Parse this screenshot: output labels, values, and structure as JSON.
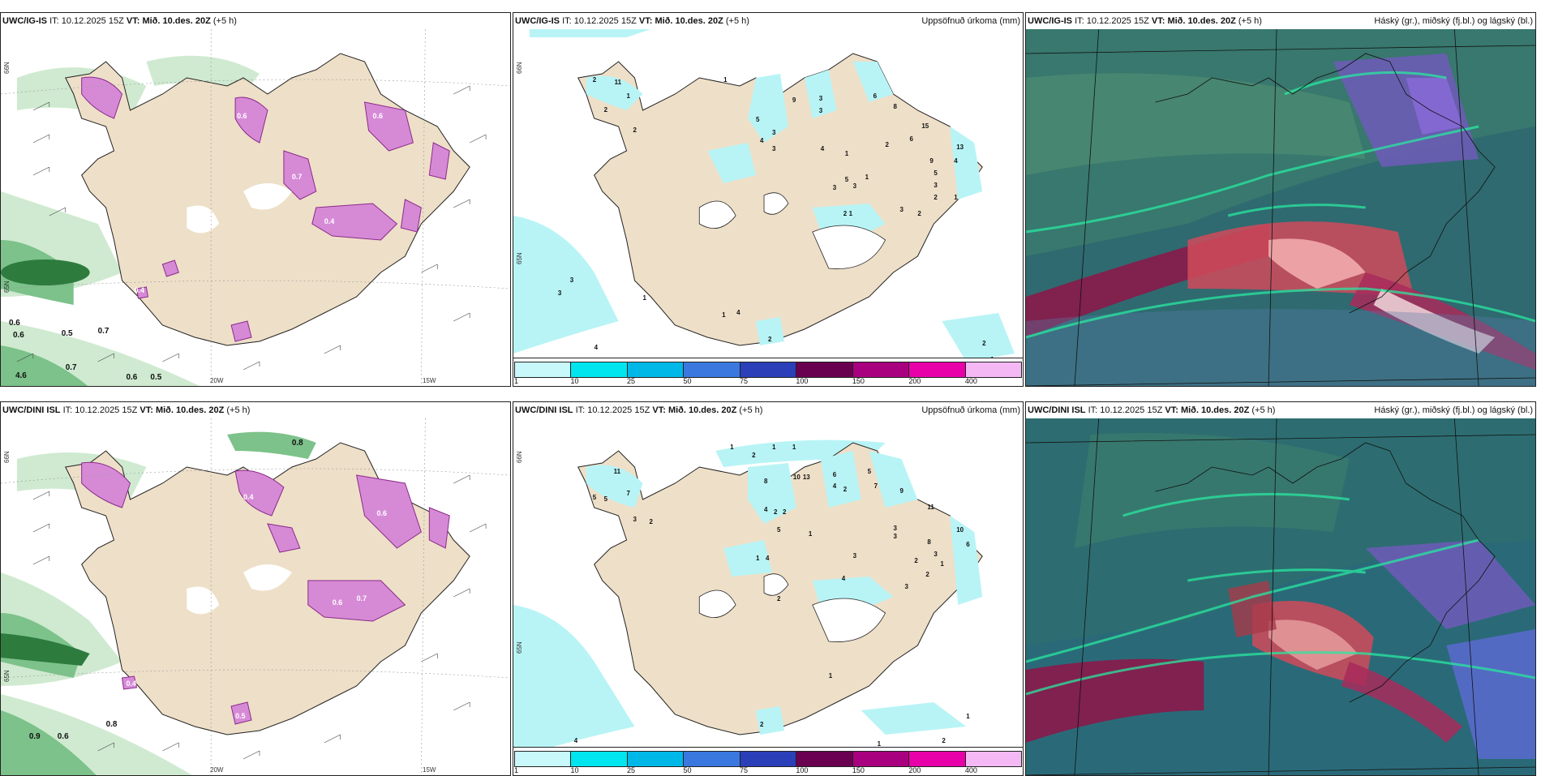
{
  "rows": [
    {
      "model": "UWC/IG-IS",
      "it_label": "IT:",
      "it_value": "10.12.2025 15Z",
      "vt_label": "VT:",
      "vt_value": "Mið. 10.des. 20Z",
      "lead": "(+5 h)"
    },
    {
      "model": "UWC/DINI ISL",
      "it_label": "IT:",
      "it_value": "10.12.2025 15Z",
      "vt_label": "VT:",
      "vt_value": "Mið. 10.des. 20Z",
      "lead": "(+5 h)"
    }
  ],
  "precip_title": "Uppsöfnuð úrkoma (mm)",
  "cloud_title": "Háský (gr.), miðský (fj.bl.) og lágský (bl.)",
  "axis": {
    "lon_labels": [
      "20W",
      "15W"
    ],
    "lat_labels": [
      "66N",
      "65N"
    ]
  },
  "colorbar": {
    "labels": [
      "1",
      "10",
      "25",
      "50",
      "75",
      "100",
      "150",
      "200",
      "400"
    ],
    "colors": [
      "#c8f8fa",
      "#00e5ee",
      "#00b8e8",
      "#3a78e0",
      "#2a3fb8",
      "#6a0050",
      "#a8007e",
      "#e800a8",
      "#f4b8f4"
    ]
  },
  "precip_values_top": [
    "1",
    "2",
    "11",
    "2",
    "2",
    "1",
    "5",
    "4",
    "3",
    "3",
    "9",
    "3",
    "3",
    "6",
    "8",
    "15",
    "13",
    "2",
    "6",
    "9",
    "4",
    "1",
    "1",
    "3",
    "4",
    "3",
    "2",
    "1",
    "3",
    "2",
    "3",
    "4",
    "1",
    "3",
    "3",
    "1",
    "2",
    "1",
    "4",
    "2",
    "1",
    "2",
    "5",
    "5"
  ],
  "precip_values_bottom": [
    "1",
    "2",
    "11",
    "7",
    "5",
    "3",
    "2",
    "1",
    "1",
    "6",
    "8",
    "10",
    "13",
    "4",
    "2",
    "5",
    "7",
    "9",
    "11",
    "8",
    "3",
    "3",
    "10",
    "6",
    "4",
    "2",
    "2",
    "5",
    "1",
    "1",
    "4",
    "3",
    "2",
    "3",
    "1",
    "2",
    "3",
    "4",
    "2",
    "1",
    "1",
    "4",
    "2",
    "1",
    "2",
    "5"
  ],
  "snow_values_top": [
    "0.6",
    "0.6",
    "0.5",
    "0.7",
    "4.6",
    "0.7",
    "0.6",
    "0.5",
    "0.4",
    "0.6",
    "0.4",
    "0.6",
    "0.7"
  ],
  "snow_values_bottom": [
    "0.8",
    "0.9",
    "0.6",
    "0.8",
    "0.4",
    "0.5",
    "0.6",
    "0.4",
    "0.6",
    "0.7"
  ],
  "colors": {
    "land": "#eedfc8",
    "cyan": "#b8f4f6",
    "magenta": "#d68ad6",
    "magenta_dark": "#8a2a8a",
    "green1": "#cfead0",
    "green2": "#7cc28a",
    "green3": "#2e7b3e",
    "cloud_bg": "#2f6a70"
  }
}
